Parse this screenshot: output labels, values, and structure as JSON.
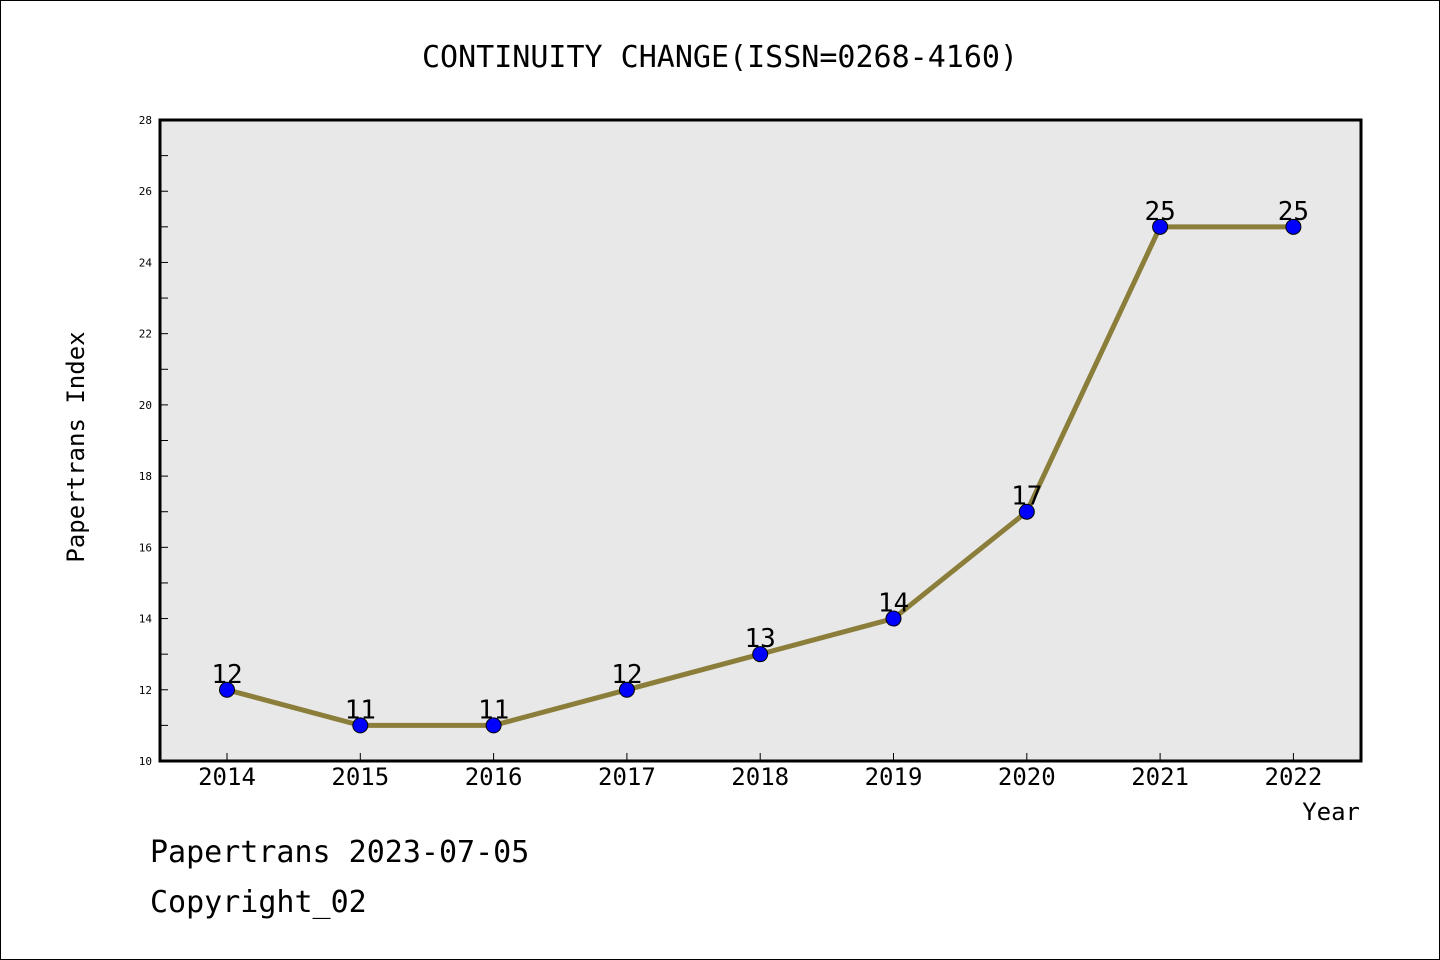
{
  "chart_data": {
    "type": "line",
    "title": "CONTINUITY CHANGE(ISSN=0268-4160)",
    "xlabel": "Year",
    "ylabel": "Papertrans Index",
    "ylim": [
      10,
      28
    ],
    "yticks": [
      10,
      12,
      14,
      16,
      18,
      20,
      22,
      24,
      26,
      28
    ],
    "categories": [
      "2014",
      "2015",
      "2016",
      "2017",
      "2018",
      "2019",
      "2020",
      "2021",
      "2022"
    ],
    "series": [
      {
        "values": [
          12,
          11,
          11,
          12,
          13,
          14,
          17,
          25,
          25
        ]
      }
    ],
    "data_labels": [
      "12",
      "11",
      "11",
      "12",
      "13",
      "14",
      "17",
      "25",
      "25"
    ],
    "grid": false,
    "colors": {
      "line": "#8b7d3a",
      "marker": "#0000ff",
      "plot_bg": "#e8e8e8"
    }
  },
  "footer": {
    "line1": "Papertrans 2023-07-05",
    "line2": "Copyright_02"
  }
}
